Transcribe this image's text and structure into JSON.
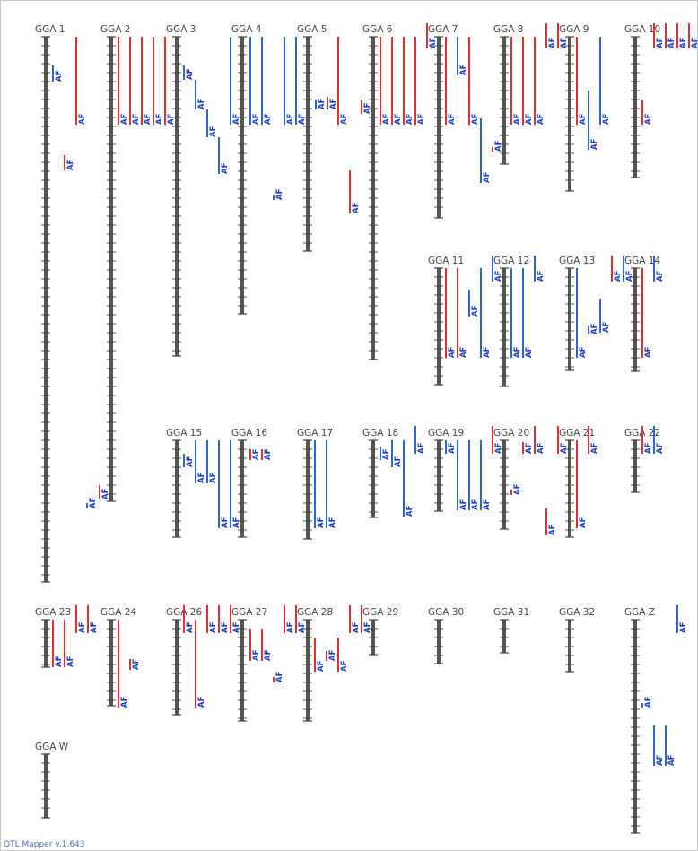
{
  "app": {
    "footer": "QTL Mapper v.1.643"
  },
  "colors": {
    "red": "#e03030",
    "blue": "#2f67c8",
    "axis": "#555555",
    "tick": "#444444",
    "label": "#444444"
  },
  "qtl_label": "AF",
  "chromosomes": [
    {
      "id": "GGA 1"
    },
    {
      "id": "GGA 2"
    },
    {
      "id": "GGA 3"
    },
    {
      "id": "GGA 4"
    },
    {
      "id": "GGA 5"
    },
    {
      "id": "GGA 6"
    },
    {
      "id": "GGA 7"
    },
    {
      "id": "GGA 8"
    },
    {
      "id": "GGA 9"
    },
    {
      "id": "GGA 10"
    },
    {
      "id": "GGA 11"
    },
    {
      "id": "GGA 12"
    },
    {
      "id": "GGA 13"
    },
    {
      "id": "GGA 14"
    },
    {
      "id": "GGA 15"
    },
    {
      "id": "GGA 16"
    },
    {
      "id": "GGA 17"
    },
    {
      "id": "GGA 18"
    },
    {
      "id": "GGA 19"
    },
    {
      "id": "GGA 20"
    },
    {
      "id": "GGA 21"
    },
    {
      "id": "GGA 22"
    },
    {
      "id": "GGA 23"
    },
    {
      "id": "GGA 24"
    },
    {
      "id": "GGA 26"
    },
    {
      "id": "GGA 27"
    },
    {
      "id": "GGA 28"
    },
    {
      "id": "GGA 29"
    },
    {
      "id": "GGA 30"
    },
    {
      "id": "GGA 31"
    },
    {
      "id": "GGA 32"
    },
    {
      "id": "GGA Z"
    },
    {
      "id": "GGA W"
    }
  ]
}
